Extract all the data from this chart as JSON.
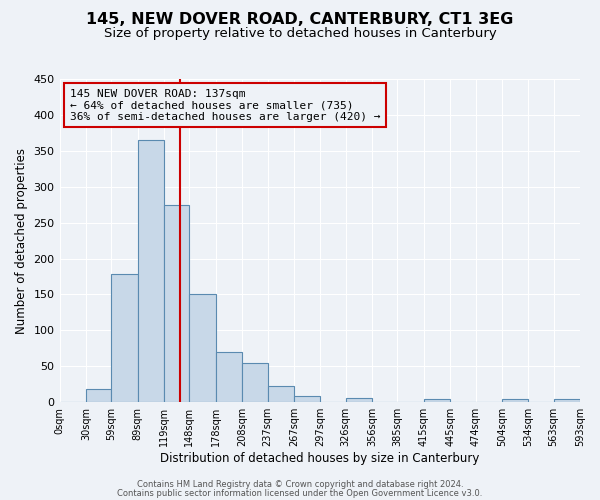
{
  "title": "145, NEW DOVER ROAD, CANTERBURY, CT1 3EG",
  "subtitle": "Size of property relative to detached houses in Canterbury",
  "xlabel": "Distribution of detached houses by size in Canterbury",
  "ylabel": "Number of detached properties",
  "bin_edges": [
    0,
    30,
    59,
    89,
    119,
    148,
    178,
    208,
    237,
    267,
    297,
    326,
    356,
    385,
    415,
    445,
    474,
    504,
    534,
    563,
    593
  ],
  "bar_heights": [
    0,
    18,
    178,
    365,
    275,
    150,
    70,
    55,
    22,
    9,
    0,
    6,
    0,
    0,
    5,
    0,
    0,
    5,
    0,
    5
  ],
  "bar_color": "#c8d8e8",
  "bar_edge_color": "#5a8ab0",
  "property_line_x": 137,
  "property_line_color": "#cc0000",
  "ylim": [
    0,
    450
  ],
  "yticks": [
    0,
    50,
    100,
    150,
    200,
    250,
    300,
    350,
    400,
    450
  ],
  "annotation_text": "145 NEW DOVER ROAD: 137sqm\n← 64% of detached houses are smaller (735)\n36% of semi-detached houses are larger (420) →",
  "annotation_box_color": "#cc0000",
  "footer_line1": "Contains HM Land Registry data © Crown copyright and database right 2024.",
  "footer_line2": "Contains public sector information licensed under the Open Government Licence v3.0.",
  "background_color": "#eef2f7",
  "grid_color": "#ffffff",
  "title_fontsize": 11.5,
  "subtitle_fontsize": 9.5
}
